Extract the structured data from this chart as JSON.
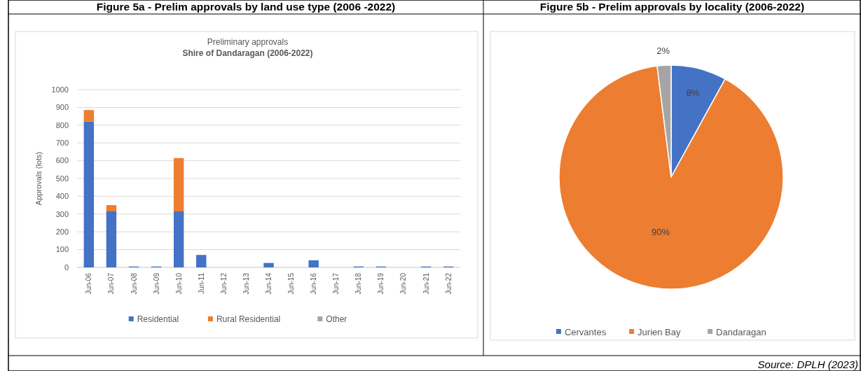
{
  "chart_data": [
    {
      "type": "bar",
      "title": "Figure 5a - Prelim approvals by land use type (2006 -2022)",
      "subtitle": "Preliminary approvals",
      "annotations": [
        "Shire of Dandaragan (2006-2022)"
      ],
      "ylabel": "Approvals (lots)",
      "stacked": true,
      "categories": [
        "Jun-06",
        "Jun-07",
        "Jun-08",
        "Jun-09",
        "Jun-10",
        "Jun-11",
        "Jun-12",
        "Jun-13",
        "Jun-14",
        "Jun-15",
        "Jun-16",
        "Jun-17",
        "Jun-18",
        "Jun-19",
        "Jun-20",
        "Jun-21",
        "Jun-22"
      ],
      "series": [
        {
          "name": "Residential",
          "color": "#4472c4",
          "values": [
            820,
            315,
            5,
            5,
            315,
            70,
            0,
            0,
            25,
            0,
            40,
            0,
            5,
            5,
            0,
            5,
            5
          ]
        },
        {
          "name": "Rural Residential",
          "color": "#ed7d31",
          "values": [
            65,
            35,
            0,
            0,
            300,
            0,
            0,
            0,
            0,
            0,
            0,
            0,
            0,
            0,
            0,
            0,
            0
          ]
        },
        {
          "name": "Other",
          "color": "#a5a5a5",
          "values": [
            0,
            0,
            0,
            0,
            0,
            0,
            0,
            0,
            0,
            0,
            0,
            0,
            0,
            0,
            0,
            0,
            0
          ]
        }
      ],
      "ylim": [
        0,
        1000
      ],
      "yticks": [
        0,
        100,
        200,
        300,
        400,
        500,
        600,
        700,
        800,
        900,
        1000
      ],
      "grid": "y",
      "legend": "bottom"
    },
    {
      "type": "pie",
      "title": "Figure 5b - Prelim approvals by locality (2006-2022)",
      "categories": [
        "Cervantes",
        "Jurien Bay",
        "Dandaragan"
      ],
      "values": [
        8,
        90,
        2
      ],
      "colors": [
        "#4472c4",
        "#ed7d31",
        "#a5a5a5"
      ],
      "value_labels": [
        "8%",
        "90%",
        "2%"
      ],
      "legend": "bottom",
      "annotations": [
        "Source: DPLH (2023)"
      ]
    }
  ]
}
